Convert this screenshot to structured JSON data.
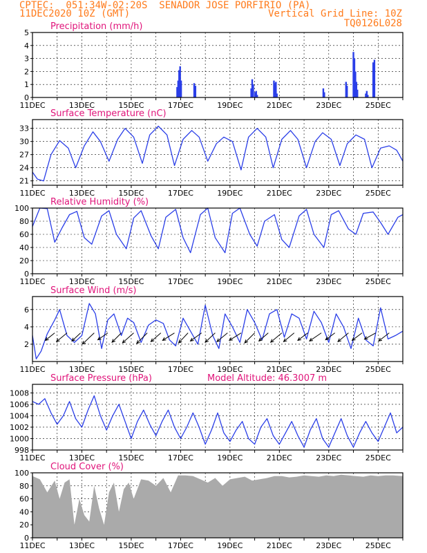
{
  "header": {
    "line1": "CPTEC:  051:34W-02:20S  SENADOR JOSE PORFIRIO (PA)",
    "line2_left": "11DEC2020 10Z (GMT)",
    "line2_right": "Vertical Grid Line: 10Z",
    "line3_right": "TQ0126L028"
  },
  "colors": {
    "header": "#ff7a1a",
    "title": "#e0147a",
    "series": "#2a3ee8",
    "cloud": "#aaaaaa",
    "arrow": "#000000"
  },
  "x_axis": {
    "labels": [
      "11DEC",
      "13DEC",
      "15DEC",
      "17DEC",
      "19DEC",
      "21DEC",
      "23DEC",
      "25DEC"
    ],
    "day_start": 0,
    "day_end": 15
  },
  "chart_data": [
    {
      "id": "precip",
      "type": "bar",
      "title": "Precipitation (mm/h)",
      "ylim": [
        0,
        5
      ],
      "yticks": [
        0,
        1,
        2,
        3,
        4,
        5
      ],
      "x": [
        5.86,
        5.9,
        5.94,
        5.98,
        6.02,
        6.55,
        6.6,
        8.86,
        8.9,
        8.94,
        9.02,
        9.06,
        9.1,
        9.78,
        9.82,
        9.86,
        9.9,
        11.78,
        11.82,
        12.7,
        12.74,
        13.0,
        13.04,
        13.08,
        13.12,
        13.16,
        13.5,
        13.54,
        13.58,
        13.8,
        13.85
      ],
      "values": [
        0.8,
        1.3,
        2.1,
        2.4,
        1.3,
        1.1,
        0.9,
        0.7,
        1.4,
        1.0,
        0.4,
        0.5,
        0.2,
        1.3,
        1.1,
        1.2,
        0.3,
        0.7,
        0.4,
        1.2,
        0.9,
        3.5,
        3.0,
        2.0,
        1.2,
        0.6,
        0.3,
        0.5,
        0.2,
        2.7,
        2.9
      ]
    },
    {
      "id": "temp",
      "type": "line",
      "title": "Surface Temperature (nC)",
      "ylim": [
        20,
        35
      ],
      "yticks": [
        21,
        24,
        27,
        30,
        33
      ],
      "x": [
        0,
        0.2,
        0.45,
        0.75,
        1.1,
        1.45,
        1.75,
        2.1,
        2.45,
        2.75,
        3.1,
        3.45,
        3.75,
        4.1,
        4.45,
        4.75,
        5.1,
        5.45,
        5.75,
        6.1,
        6.45,
        6.75,
        7.1,
        7.45,
        7.75,
        8.1,
        8.45,
        8.75,
        9.1,
        9.45,
        9.75,
        10.1,
        10.45,
        10.75,
        11.1,
        11.45,
        11.75,
        12.1,
        12.45,
        12.75,
        13.1,
        13.45,
        13.75,
        14.1,
        14.45,
        14.75,
        15.0
      ],
      "values": [
        23,
        21.4,
        21.0,
        27.0,
        30.2,
        28.5,
        24.0,
        29.0,
        32.2,
        30.0,
        25.5,
        30.5,
        33.0,
        31.0,
        25.0,
        31.5,
        33.5,
        31.5,
        24.5,
        30.5,
        32.5,
        31.0,
        25.5,
        29.5,
        31.0,
        30.0,
        23.5,
        31.0,
        33.0,
        31.0,
        24.0,
        30.5,
        32.5,
        30.5,
        24.0,
        30.0,
        32.0,
        30.5,
        24.5,
        29.5,
        31.5,
        30.5,
        24.0,
        28.5,
        29.0,
        28.0,
        25.5
      ]
    },
    {
      "id": "rh",
      "type": "line",
      "title": "Relative Humidity (%)",
      "ylim": [
        0,
        100
      ],
      "yticks": [
        0,
        20,
        40,
        60,
        80,
        100
      ],
      "x": [
        0,
        0.3,
        0.6,
        0.9,
        1.2,
        1.5,
        1.8,
        2.1,
        2.4,
        2.8,
        3.1,
        3.4,
        3.8,
        4.1,
        4.4,
        4.8,
        5.1,
        5.4,
        5.8,
        6.1,
        6.4,
        6.8,
        7.1,
        7.4,
        7.8,
        8.1,
        8.4,
        8.8,
        9.1,
        9.4,
        9.8,
        10.1,
        10.4,
        10.8,
        11.1,
        11.4,
        11.8,
        12.1,
        12.4,
        12.8,
        13.1,
        13.4,
        13.8,
        14.1,
        14.4,
        14.8,
        15.0
      ],
      "values": [
        72,
        100,
        99,
        48,
        70,
        90,
        95,
        55,
        45,
        88,
        96,
        60,
        38,
        85,
        96,
        58,
        38,
        86,
        98,
        55,
        32,
        90,
        100,
        55,
        32,
        92,
        100,
        60,
        42,
        80,
        90,
        52,
        40,
        88,
        98,
        60,
        40,
        90,
        96,
        68,
        60,
        92,
        94,
        78,
        60,
        86,
        90
      ]
    },
    {
      "id": "wind",
      "type": "line",
      "title": "Surface Wind (m/s)",
      "ylim": [
        0,
        7.5
      ],
      "yticks": [
        2,
        4,
        6
      ],
      "x": [
        0,
        0.15,
        0.35,
        0.6,
        0.9,
        1.1,
        1.4,
        1.7,
        2.0,
        2.3,
        2.55,
        2.8,
        3.05,
        3.3,
        3.6,
        3.85,
        4.1,
        4.4,
        4.7,
        5.0,
        5.3,
        5.55,
        5.8,
        6.1,
        6.4,
        6.7,
        7.0,
        7.3,
        7.55,
        7.8,
        8.1,
        8.4,
        8.7,
        9.0,
        9.3,
        9.6,
        9.9,
        10.2,
        10.5,
        10.8,
        11.1,
        11.4,
        11.7,
        12.0,
        12.3,
        12.6,
        12.9,
        13.2,
        13.5,
        13.8,
        14.1,
        14.4,
        14.7,
        15.0
      ],
      "values": [
        3.0,
        0.3,
        1.2,
        3.2,
        4.8,
        6.0,
        3.0,
        2.2,
        3.0,
        6.7,
        5.5,
        1.5,
        4.8,
        5.5,
        3.0,
        5.0,
        4.5,
        2.2,
        4.2,
        4.8,
        4.4,
        2.5,
        1.8,
        5.0,
        3.5,
        2.0,
        6.5,
        3.0,
        1.5,
        5.5,
        4.0,
        2.2,
        6.0,
        4.5,
        2.5,
        5.5,
        6.0,
        2.8,
        5.5,
        5.0,
        2.6,
        5.8,
        4.5,
        2.2,
        5.5,
        4.0,
        1.5,
        5.0,
        2.5,
        1.8,
        6.2,
        2.6,
        3.0,
        3.5
      ],
      "vectors": {
        "x": [
          0.9,
          1.4,
          1.95,
          2.5,
          3.05,
          3.6,
          4.1,
          4.65,
          5.2,
          5.75,
          6.3,
          6.85,
          7.4,
          7.9,
          8.45,
          9.0,
          9.55,
          10.1,
          10.6,
          11.15,
          11.7,
          12.25,
          12.8,
          13.35,
          13.9,
          14.45
        ],
        "u": [
          -1.5,
          -1.7,
          -1.4,
          -1.9,
          -1.6,
          -1.5,
          -1.8,
          -1.7,
          -1.6,
          -1.9,
          -1.5,
          -1.8,
          -1.6,
          -1.7,
          -1.9,
          -1.6,
          -1.5,
          -1.8,
          -1.7,
          -1.6,
          -1.9,
          -1.5,
          -1.7,
          -1.6,
          -1.8,
          -1.7
        ],
        "v": [
          -1.2,
          -1.4,
          -1.3,
          -1.8,
          -1.1,
          -1.5,
          -1.6,
          -1.7,
          -1.4,
          -1.2,
          -1.6,
          -1.3,
          -1.5,
          -1.4,
          -1.2,
          -1.6,
          -1.3,
          -1.5,
          -1.4,
          -1.2,
          -1.3,
          -1.1,
          -1.4,
          -1.2,
          -1.0,
          -1.3
        ]
      }
    },
    {
      "id": "pres",
      "type": "line",
      "title": "Surface Pressure (hPa)",
      "subtitle": "Model Altitude: 46.3007 m",
      "ylim": [
        998,
        1009.5
      ],
      "yticks": [
        998,
        1000,
        1002,
        1004,
        1006,
        1008
      ],
      "x": [
        0,
        0.25,
        0.5,
        0.75,
        1.0,
        1.25,
        1.5,
        1.75,
        2.0,
        2.25,
        2.5,
        2.75,
        3.0,
        3.25,
        3.5,
        3.75,
        4.0,
        4.25,
        4.5,
        4.75,
        5.0,
        5.25,
        5.5,
        5.75,
        6.0,
        6.25,
        6.5,
        6.75,
        7.0,
        7.25,
        7.5,
        7.75,
        8.0,
        8.25,
        8.5,
        8.75,
        9.0,
        9.25,
        9.5,
        9.75,
        10.0,
        10.25,
        10.5,
        10.75,
        11.0,
        11.25,
        11.5,
        11.75,
        12.0,
        12.25,
        12.5,
        12.75,
        13.0,
        13.25,
        13.5,
        13.75,
        14.0,
        14.25,
        14.5,
        14.75,
        15.0
      ],
      "values": [
        1006.5,
        1006.0,
        1007.0,
        1004.5,
        1002.5,
        1004.0,
        1006.5,
        1003.5,
        1002.0,
        1005.0,
        1007.5,
        1004.0,
        1001.5,
        1004.0,
        1006.0,
        1003.0,
        1000.0,
        1003.0,
        1005.0,
        1002.5,
        1000.5,
        1003.0,
        1005.0,
        1002.0,
        1000.0,
        1002.0,
        1004.5,
        1002.0,
        999.0,
        1001.5,
        1004.5,
        1001.0,
        999.5,
        1001.5,
        1003.0,
        1000.0,
        999.0,
        1002.0,
        1003.5,
        1000.5,
        999.0,
        1001.0,
        1003.0,
        1000.5,
        998.5,
        1001.5,
        1003.5,
        1000.0,
        998.5,
        1001.0,
        1003.5,
        1000.5,
        998.5,
        1001.0,
        1003.0,
        1001.0,
        999.5,
        1002.0,
        1004.5,
        1001.0,
        1002.0
      ]
    },
    {
      "id": "cloud",
      "type": "area",
      "title": "Cloud Cover (%)",
      "ylim": [
        0,
        100
      ],
      "yticks": [
        0,
        20,
        40,
        60,
        80,
        100
      ],
      "x": [
        0,
        0.3,
        0.6,
        0.9,
        1.1,
        1.3,
        1.5,
        1.7,
        1.9,
        2.1,
        2.3,
        2.5,
        2.7,
        2.9,
        3.1,
        3.3,
        3.5,
        3.7,
        3.9,
        4.1,
        4.4,
        4.7,
        5.0,
        5.3,
        5.6,
        5.9,
        6.2,
        6.5,
        6.8,
        7.1,
        7.4,
        7.7,
        8.0,
        8.3,
        8.6,
        8.9,
        9.2,
        9.5,
        9.8,
        10.1,
        10.4,
        10.7,
        11.0,
        11.3,
        11.6,
        11.9,
        12.2,
        12.5,
        12.8,
        13.1,
        13.4,
        13.7,
        14.0,
        14.3,
        14.6,
        15.0
      ],
      "values": [
        95,
        90,
        70,
        88,
        60,
        85,
        90,
        20,
        60,
        35,
        25,
        80,
        45,
        20,
        70,
        85,
        40,
        75,
        85,
        60,
        90,
        88,
        80,
        92,
        70,
        96,
        96,
        95,
        90,
        85,
        92,
        80,
        90,
        92,
        94,
        88,
        90,
        92,
        95,
        95,
        93,
        94,
        96,
        95,
        94,
        96,
        95,
        97,
        96,
        95,
        94,
        96,
        95,
        96,
        96,
        95
      ]
    }
  ]
}
